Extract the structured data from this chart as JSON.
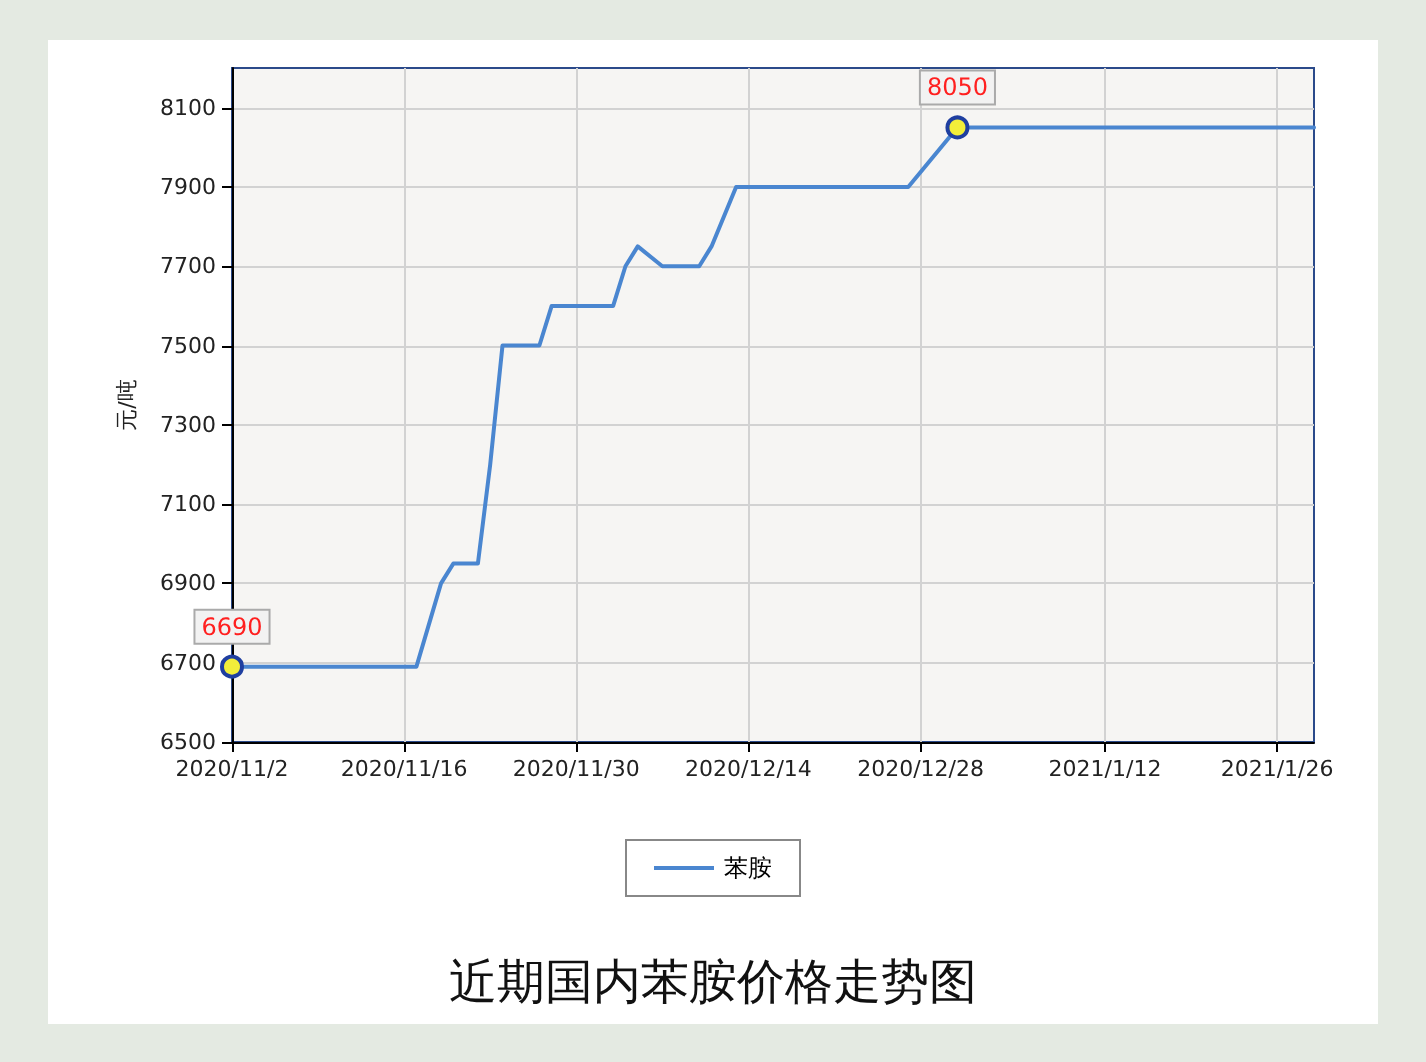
{
  "chart_data": {
    "type": "line",
    "title": "近期国内苯胺价格走势图",
    "ylabel": "元/吨",
    "x": [
      "2020-11-02",
      "2020-11-17",
      "2020-11-19",
      "2020-11-20",
      "2020-11-22",
      "2020-11-23",
      "2020-11-24",
      "2020-11-27",
      "2020-11-28",
      "2020-12-03",
      "2020-12-04",
      "2020-12-05",
      "2020-12-07",
      "2020-12-10",
      "2020-12-11",
      "2020-12-13",
      "2020-12-27",
      "2020-12-31",
      "2021-01-29"
    ],
    "series": [
      {
        "name": "苯胺",
        "color": "#4a86d0",
        "values": [
          6690,
          6690,
          6900,
          6950,
          6950,
          7200,
          7500,
          7500,
          7600,
          7600,
          7700,
          7750,
          7700,
          7700,
          7750,
          7900,
          7900,
          8050,
          8050
        ]
      }
    ],
    "xlim": [
      "2020-11-02",
      "2021-01-29"
    ],
    "xticks": [
      {
        "value": "2020-11-02",
        "label": "2020/11/2"
      },
      {
        "value": "2020-11-16",
        "label": "2020/11/16"
      },
      {
        "value": "2020-11-30",
        "label": "2020/11/30"
      },
      {
        "value": "2020-12-14",
        "label": "2020/12/14"
      },
      {
        "value": "2020-12-28",
        "label": "2020/12/28"
      },
      {
        "value": "2021-01-12",
        "label": "2021/1/12"
      },
      {
        "value": "2021-01-26",
        "label": "2021/1/26"
      }
    ],
    "ylim": [
      6500,
      8200
    ],
    "yticks": [
      6500,
      6700,
      6900,
      7100,
      7300,
      7500,
      7700,
      7900,
      8100
    ],
    "annotations": [
      {
        "text": "6690",
        "x": "2020-11-02",
        "y": 6690
      },
      {
        "text": "8050",
        "x": "2020-12-31",
        "y": 8050
      }
    ],
    "grid": true,
    "legend": "bottom",
    "marker": "none",
    "line_style": "solid"
  }
}
